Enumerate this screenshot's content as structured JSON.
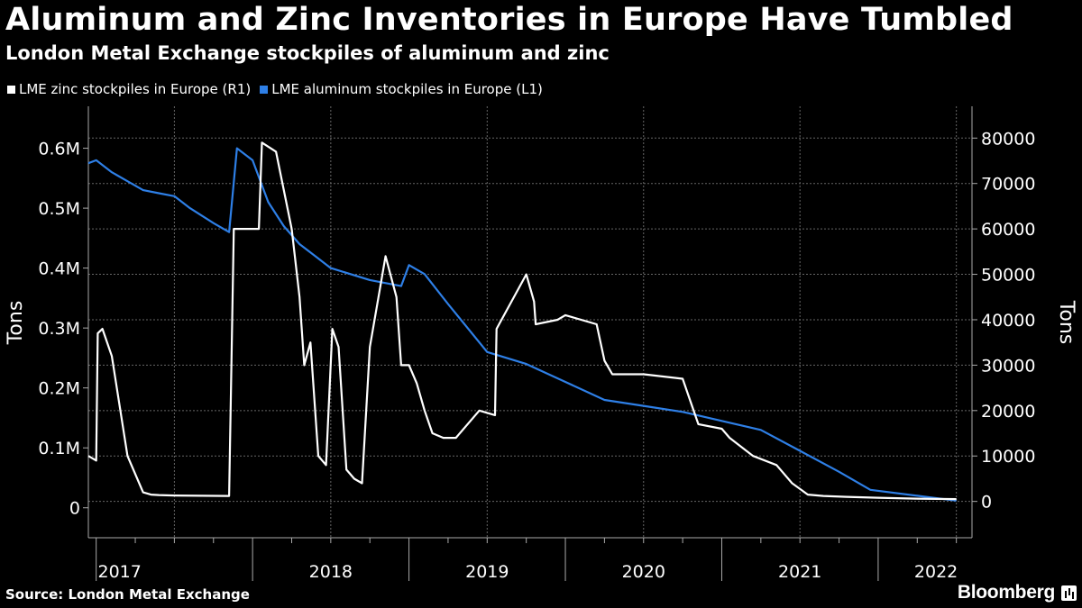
{
  "header": {
    "title": "Aluminum and Zinc Inventories in Europe Have Tumbled",
    "subtitle": "London Metal Exchange stockpiles of aluminum and zinc"
  },
  "legend": {
    "zinc_label": "LME zinc stockpiles in Europe (R1)",
    "aluminum_label": "LME aluminum stockpiles in Europe (L1)"
  },
  "footer": {
    "source": "Source: London Metal Exchange",
    "brand": "Bloomberg"
  },
  "colors": {
    "background": "#000000",
    "zinc": "#ffffff",
    "aluminum": "#2e7fe6",
    "grid": "#666666"
  },
  "chart_data": {
    "type": "line",
    "title": "Aluminum and Zinc Inventories in Europe Have Tumbled",
    "x_range": [
      2016.95,
      2022.6
    ],
    "year_labels": [
      "2017",
      "2018",
      "2019",
      "2020",
      "2021",
      "2022"
    ],
    "year_label_positions": [
      2017.15,
      2018.5,
      2019.5,
      2020.5,
      2021.5,
      2022.37
    ],
    "left_axis": {
      "label": "Tons",
      "range": [
        -50000,
        670000
      ],
      "ticks": [
        0,
        100000,
        200000,
        300000,
        400000,
        500000,
        600000
      ],
      "tick_labels": [
        "0",
        "0.1M",
        "0.2M",
        "0.3M",
        "0.4M",
        "0.5M",
        "0.6M"
      ]
    },
    "right_axis": {
      "label": "Tons",
      "range": [
        -8000,
        87000
      ],
      "ticks": [
        0,
        10000,
        20000,
        30000,
        40000,
        50000,
        60000,
        70000,
        80000
      ],
      "tick_labels": [
        "0",
        "10000",
        "20000",
        "30000",
        "40000",
        "50000",
        "60000",
        "70000",
        "80000"
      ]
    },
    "series": [
      {
        "name": "LME aluminum stockpiles in Europe (L1)",
        "axis": "left",
        "x": [
          2016.95,
          2017.0,
          2017.1,
          2017.2,
          2017.3,
          2017.4,
          2017.5,
          2017.6,
          2017.75,
          2017.85,
          2017.9,
          2018.0,
          2018.1,
          2018.2,
          2018.3,
          2018.4,
          2018.5,
          2018.75,
          2018.95,
          2019.0,
          2019.1,
          2019.25,
          2019.5,
          2019.75,
          2020.0,
          2020.25,
          2020.5,
          2020.75,
          2021.0,
          2021.25,
          2021.5,
          2021.75,
          2021.95,
          2022.25,
          2022.5
        ],
        "y": [
          575000,
          580000,
          560000,
          545000,
          530000,
          525000,
          520000,
          500000,
          475000,
          460000,
          600000,
          580000,
          510000,
          470000,
          440000,
          420000,
          400000,
          380000,
          370000,
          405000,
          390000,
          340000,
          260000,
          240000,
          210000,
          180000,
          170000,
          160000,
          145000,
          130000,
          95000,
          60000,
          30000,
          20000,
          12000
        ]
      },
      {
        "name": "LME zinc stockpiles in Europe (R1)",
        "axis": "right",
        "x": [
          2016.95,
          2017.0,
          2017.01,
          2017.04,
          2017.1,
          2017.2,
          2017.3,
          2017.35,
          2017.4,
          2017.5,
          2017.85,
          2017.88,
          2018.0,
          2018.04,
          2018.06,
          2018.15,
          2018.25,
          2018.3,
          2018.33,
          2018.37,
          2018.42,
          2018.47,
          2018.51,
          2018.55,
          2018.6,
          2018.65,
          2018.7,
          2018.75,
          2018.85,
          2018.92,
          2018.95,
          2019.0,
          2019.05,
          2019.1,
          2019.15,
          2019.22,
          2019.3,
          2019.45,
          2019.55,
          2019.56,
          2019.75,
          2019.8,
          2019.81,
          2019.95,
          2020.0,
          2020.2,
          2020.25,
          2020.3,
          2020.5,
          2020.75,
          2020.85,
          2021.0,
          2021.05,
          2021.2,
          2021.35,
          2021.45,
          2021.55,
          2021.65,
          2021.8,
          2022.0,
          2022.25,
          2022.5
        ],
        "y": [
          10000,
          9000,
          37000,
          38000,
          32000,
          10000,
          2000,
          1500,
          1400,
          1300,
          1200,
          60000,
          60000,
          60000,
          79000,
          77000,
          60000,
          45000,
          30000,
          35000,
          10000,
          8000,
          38000,
          34000,
          7000,
          5000,
          4000,
          34000,
          54000,
          45000,
          30000,
          30000,
          26000,
          20000,
          15000,
          14000,
          14000,
          20000,
          19000,
          38000,
          50000,
          44000,
          39000,
          40000,
          41000,
          39000,
          31000,
          28000,
          28000,
          27000,
          17000,
          16000,
          14000,
          10000,
          8000,
          4000,
          1500,
          1200,
          1000,
          800,
          600,
          500
        ]
      }
    ]
  }
}
